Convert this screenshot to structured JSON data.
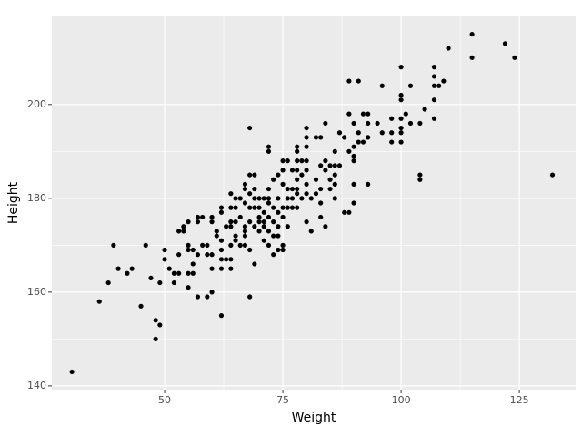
{
  "chart_data": {
    "type": "scatter",
    "x_label": "Weight",
    "y_label": "Height",
    "x": [
      30.4,
      36.2,
      38.1,
      39.2,
      40.2,
      42.1,
      43.1,
      45,
      46,
      47.1,
      48.1,
      48.1,
      49,
      49,
      50,
      50,
      51,
      52,
      52,
      53,
      53,
      53,
      54,
      54,
      55,
      55,
      55,
      55,
      55,
      56,
      56,
      56,
      57,
      57,
      57,
      57,
      58,
      58,
      59,
      59,
      59,
      60,
      60,
      60,
      60,
      60,
      61,
      61,
      62,
      62,
      62,
      62,
      62,
      62,
      62,
      63,
      63,
      64,
      64,
      64,
      64,
      64,
      64,
      64,
      65,
      65,
      65,
      65,
      65,
      66,
      66,
      66,
      67,
      67,
      67,
      67,
      67,
      67,
      67,
      68,
      68,
      68,
      68,
      68,
      68,
      68,
      69,
      69,
      69,
      69,
      69,
      69,
      70,
      70,
      70,
      70,
      70,
      71,
      71,
      71,
      71,
      71,
      72,
      72,
      72,
      72,
      72,
      72,
      72,
      72,
      73,
      73,
      73,
      73,
      73,
      74,
      74,
      74,
      74,
      74,
      74,
      75,
      75,
      75,
      75,
      75,
      75,
      75,
      76,
      76,
      76,
      76,
      76,
      77,
      77,
      77,
      77,
      78,
      78,
      78,
      78,
      78,
      78,
      78,
      78,
      79,
      79,
      79,
      80,
      80,
      80,
      80,
      80,
      80,
      80,
      80,
      81,
      81,
      82,
      82,
      82,
      83,
      83,
      83,
      83,
      83,
      84,
      84,
      84,
      84,
      85,
      85,
      85,
      86,
      86,
      86,
      86,
      86,
      87,
      87,
      88,
      88,
      89,
      89,
      89,
      89,
      90,
      90,
      90,
      90,
      90,
      90,
      91,
      91,
      91,
      92,
      92,
      93,
      93,
      93,
      93,
      95,
      96,
      96,
      98,
      98,
      98,
      100,
      100,
      100,
      100,
      100,
      100,
      100,
      101,
      102,
      102,
      104,
      104,
      104,
      105,
      107,
      107,
      107,
      107,
      107,
      108,
      109,
      110,
      115,
      115,
      122,
      124,
      132
    ],
    "values": [
      143,
      158,
      162,
      170,
      165,
      164,
      165,
      157,
      170,
      163,
      154,
      150,
      153,
      162,
      169,
      167,
      165,
      164,
      162,
      164,
      168,
      173,
      174,
      173,
      175,
      170,
      169,
      164,
      161,
      169,
      166,
      164,
      175,
      176,
      159,
      168,
      176,
      170,
      168,
      159,
      170,
      168,
      165,
      176,
      175,
      160,
      172,
      173,
      155,
      167,
      165,
      169,
      171,
      177,
      178,
      174,
      167,
      165,
      167,
      170,
      174,
      175,
      178,
      181,
      180,
      178,
      175,
      172,
      171,
      180,
      176,
      170,
      183,
      182,
      179,
      173,
      172,
      174,
      170,
      185,
      181,
      178,
      175,
      195,
      159,
      169,
      185,
      182,
      180,
      178,
      174,
      166,
      180,
      178,
      176,
      175,
      173,
      180,
      177,
      175,
      174,
      171,
      191,
      190,
      182,
      180,
      179,
      176,
      173,
      170,
      184,
      178,
      175,
      172,
      168,
      185,
      180,
      177,
      174,
      172,
      169,
      188,
      186,
      183,
      178,
      176,
      170,
      169,
      188,
      182,
      180,
      178,
      174,
      186,
      182,
      180,
      178,
      191,
      190,
      188,
      186,
      184,
      182,
      181,
      178,
      188,
      185,
      180,
      195,
      193,
      191,
      188,
      186,
      183,
      181,
      175,
      180,
      173,
      193,
      184,
      181,
      193,
      187,
      182,
      179,
      176,
      196,
      188,
      186,
      174,
      187,
      184,
      182,
      190,
      187,
      185,
      183,
      180,
      187,
      194,
      193,
      177,
      205,
      198,
      190,
      177,
      189,
      188,
      183,
      179,
      196,
      191,
      205,
      194,
      192,
      198,
      192,
      196,
      193,
      183,
      198,
      196,
      194,
      204,
      197,
      194,
      192,
      208,
      202,
      201,
      197,
      195,
      194,
      192,
      198,
      204,
      196,
      196,
      185,
      184,
      199,
      208,
      206,
      204,
      201,
      197,
      204,
      205,
      212,
      215,
      210,
      213,
      210,
      185
    ],
    "color": "#000000",
    "xlim": [
      26.15,
      136.9
    ],
    "xticks": [
      50,
      75,
      100,
      125
    ],
    "ylim": [
      139.2,
      218.8
    ],
    "yticks": [
      140,
      160,
      180,
      200
    ],
    "grid": true
  }
}
